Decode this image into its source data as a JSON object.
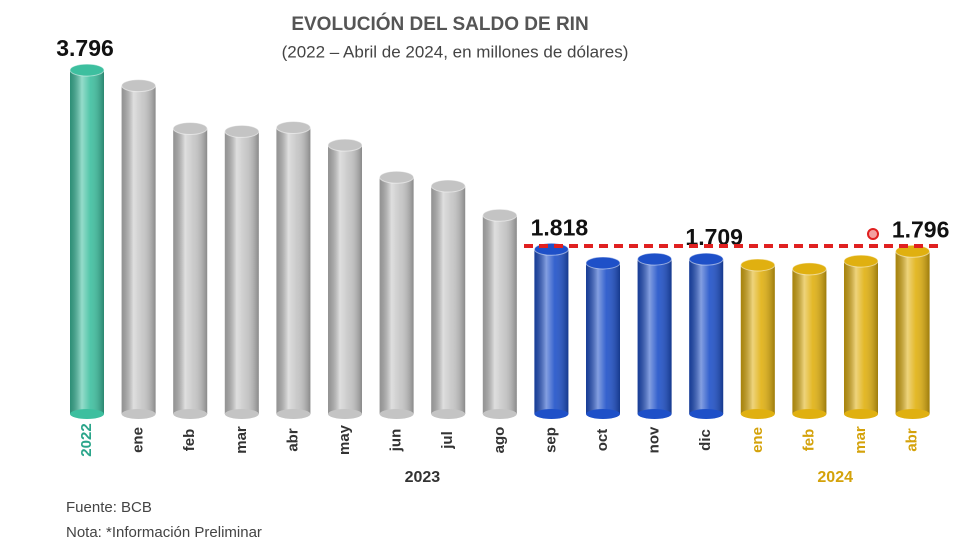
{
  "chart_data": {
    "type": "bar",
    "title": "EVOLUCIÓN DEL SALDO DE RIN",
    "subtitle": "(2022 – Abril de 2024, en millones de dólares)",
    "categories": [
      "2022",
      "ene",
      "feb",
      "mar",
      "abr",
      "may",
      "jun",
      "jul",
      "ago",
      "sep",
      "oct",
      "nov",
      "dic",
      "ene",
      "feb",
      "mar",
      "abr"
    ],
    "values": [
      3796,
      3624,
      3151,
      3119,
      3162,
      2968,
      2613,
      2516,
      2194,
      1818,
      1667,
      1710,
      1709,
      1645,
      1602,
      1688,
      1796
    ],
    "value_labels": [
      "3.796",
      null,
      null,
      null,
      null,
      null,
      null,
      null,
      null,
      "1.818",
      null,
      null,
      "1.709",
      null,
      null,
      null,
      "1.796"
    ],
    "colors": [
      "#3dbf9f",
      "#c4c4c4",
      "#c4c4c4",
      "#c4c4c4",
      "#c4c4c4",
      "#c4c4c4",
      "#c4c4c4",
      "#c4c4c4",
      "#c4c4c4",
      "#1e50c8",
      "#1e50c8",
      "#1e50c8",
      "#1e50c8",
      "#e0b010",
      "#e0b010",
      "#e0b010",
      "#e0b010"
    ],
    "label_colors": [
      "#2aa58a",
      "#333333",
      "#333333",
      "#333333",
      "#333333",
      "#333333",
      "#333333",
      "#333333",
      "#333333",
      "#333333",
      "#333333",
      "#333333",
      "#333333",
      "#d4a20a",
      "#d4a20a",
      "#d4a20a",
      "#d4a20a"
    ],
    "groups": [
      {
        "label": "2023",
        "from": 1,
        "to": 12,
        "color": "#333333"
      },
      {
        "label": "2024",
        "from": 13,
        "to": 16,
        "color": "#d4a20a"
      }
    ],
    "source": "Fuente: BCB",
    "note": "Nota: *Información Preliminar"
  }
}
